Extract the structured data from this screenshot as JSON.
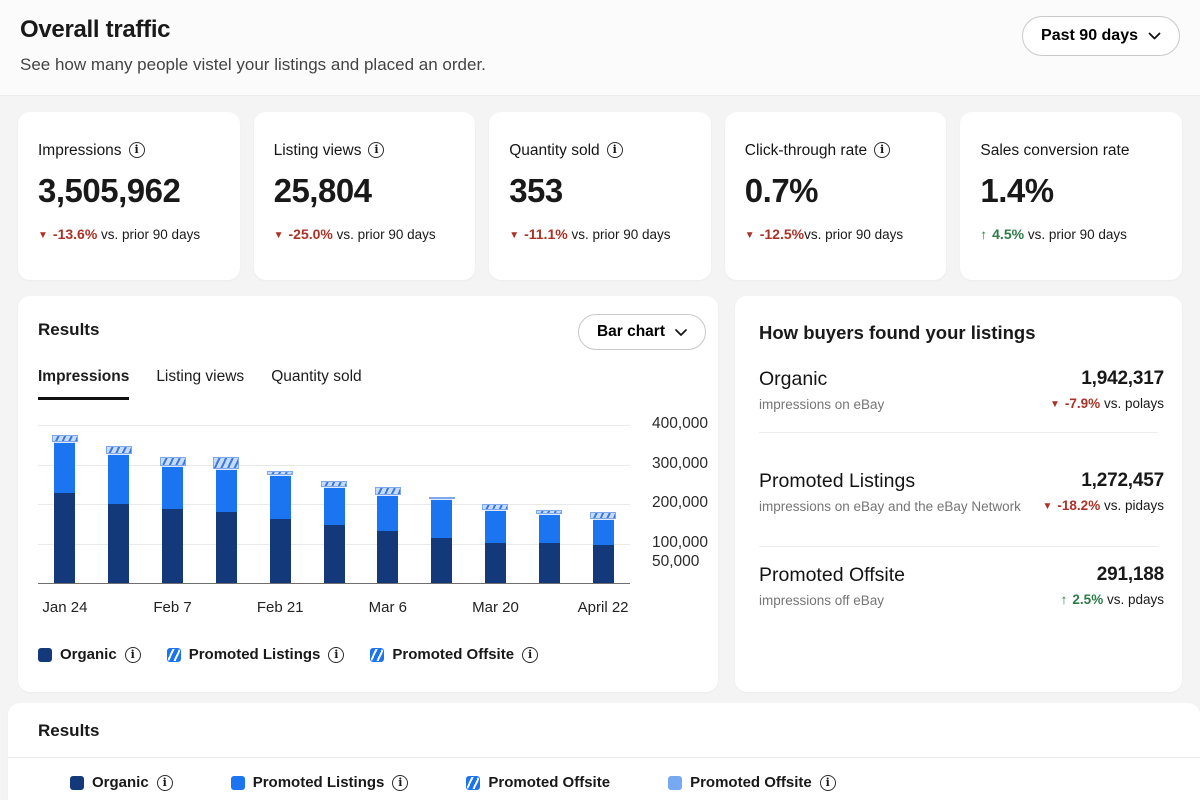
{
  "header": {
    "title": "Overall traffic",
    "subtitle": "See how many people vistel your listings and placed an order.",
    "range_selector": {
      "label": "Past 90 days"
    }
  },
  "metric_cards": [
    {
      "label": "Impressions",
      "value": "3,505,962",
      "trend": "down",
      "delta": "-13.6%",
      "delta_suffix": "vs. prior 90 days"
    },
    {
      "label": "Listing views",
      "value": "25,804",
      "trend": "down",
      "delta": "-25.0%",
      "delta_suffix": "vs. prior 90 days"
    },
    {
      "label": "Quantity sold",
      "value": "353",
      "trend": "down",
      "delta": "-11.1%",
      "delta_suffix": "vs. prior 90 days"
    },
    {
      "label": "Click-through rate",
      "value": "0.7%",
      "trend": "down",
      "delta": "-12.5%",
      "delta_suffix": "vs. prior 90 days"
    },
    {
      "label": "Sales conversion rate",
      "value": "1.4%",
      "trend": "up",
      "delta": "4.5%",
      "delta_suffix": "vs. prior 90 days"
    }
  ],
  "results_card": {
    "title": "Results",
    "chart_type_selector": {
      "label": "Bar chart"
    },
    "tabs": [
      {
        "label": "Impressions",
        "active": true
      },
      {
        "label": "Listing views",
        "active": false
      },
      {
        "label": "Quantity sold",
        "active": false
      }
    ],
    "legend": [
      {
        "label": "Organic"
      },
      {
        "label": "Promoted Listings"
      },
      {
        "label": "Promoted Offsite"
      }
    ]
  },
  "chart_data": {
    "type": "bar",
    "stacked": true,
    "title": "Impressions",
    "categories": [
      "Jan 24",
      "",
      "Feb 7",
      "",
      "Feb 21",
      "",
      "Mar 6",
      "",
      "Mar 20",
      "",
      "April 22"
    ],
    "x_tick_labels": [
      "Jan 24",
      "",
      "Feb 7",
      "",
      "Feb 21",
      "",
      "Mar 6",
      "",
      "Mar 20",
      "",
      "April 22"
    ],
    "series": [
      {
        "name": "Organic",
        "color": "#13397a",
        "values": [
          228000,
          199000,
          188000,
          180000,
          162000,
          148000,
          132000,
          114000,
          101000,
          101000,
          95000
        ]
      },
      {
        "name": "Promoted Listings",
        "color": "#1b74f0",
        "values": [
          130000,
          127000,
          109000,
          109000,
          111000,
          95000,
          90000,
          98000,
          85000,
          74000,
          66000
        ]
      },
      {
        "name": "Promoted Offsite",
        "color": "#c6dafc",
        "hatch": true,
        "values": [
          16000,
          21000,
          21000,
          29000,
          11000,
          16000,
          21000,
          5000,
          13000,
          11000,
          19000
        ]
      }
    ],
    "ylim": [
      0,
      400000
    ],
    "yticks": [
      400000,
      300000,
      200000,
      100000,
      50000
    ],
    "ytick_labels": [
      "400,000",
      "300,000",
      "200,000",
      "100,000",
      "50,000"
    ],
    "grid": true,
    "legend_position": "bottom"
  },
  "buyers_card": {
    "title": "How buyers found your listings",
    "rows": [
      {
        "name": "Organic",
        "description": "impressions on eBay",
        "value": "1,942,317",
        "trend": "down",
        "delta": "-7.9%",
        "delta_suffix": "vs. polays"
      },
      {
        "name": "Promoted Listings",
        "description": "impressions on eBay and the eBay Network",
        "value": "1,272,457",
        "trend": "down",
        "delta": "-18.2%",
        "delta_suffix": "vs. pidays"
      },
      {
        "name": "Promoted Offsite",
        "description": "impressions off eBay",
        "value": "291,188",
        "trend": "up",
        "delta": "2.5%",
        "delta_suffix": "vs. pdays"
      }
    ]
  },
  "bottom_results": {
    "title": "Results",
    "legend": [
      {
        "label": "Organic",
        "swatch": "organic",
        "has_info": true
      },
      {
        "label": "Promoted Listings",
        "swatch": "blue",
        "has_info": true
      },
      {
        "label": "Promoted Offsite",
        "swatch": "striped",
        "has_info": false
      },
      {
        "label": "Promoted Offsite",
        "swatch": "lightblue",
        "has_info": true
      }
    ]
  },
  "colors": {
    "organic": "#13397a",
    "promoted_listings": "#1b74f0",
    "promoted_offsite_light": "#77a9f2",
    "negative": "#ab3227",
    "positive": "#2b7d46"
  }
}
